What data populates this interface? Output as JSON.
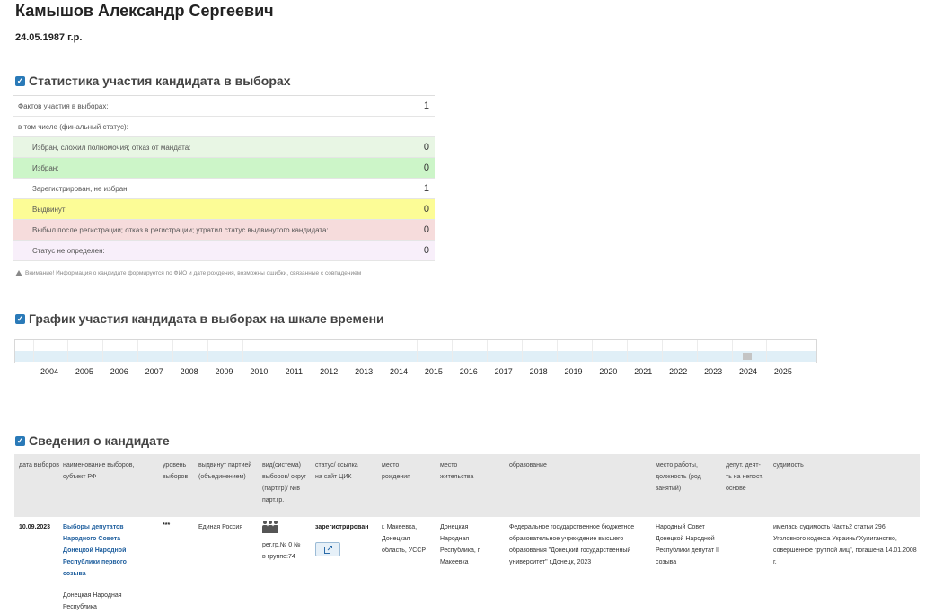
{
  "candidate": {
    "name": "Камышов Александр Сергеевич",
    "dob": "24.05.1987 г.р."
  },
  "stats": {
    "heading": "Статистика участия кандидата в выборах",
    "rows": [
      {
        "label": "Фактов участия в выборах:",
        "value": "1",
        "bg": "#ffffff"
      },
      {
        "label": "в том числе (финальный статус):",
        "value": "",
        "bg": "#ffffff"
      },
      {
        "label": "Избран, сложил полномочия; отказ от мандата:",
        "value": "0",
        "bg": "#e8f6e4"
      },
      {
        "label": "Избран:",
        "value": "0",
        "bg": "#ccf5c8"
      },
      {
        "label": "Зарегистрирован, не избран:",
        "value": "1",
        "bg": "#ffffff"
      },
      {
        "label": "Выдвинут:",
        "value": "0",
        "bg": "#fcfc96"
      },
      {
        "label": "Выбыл после регистрации; отказ в регистрации; утратил статус выдвинутого кандидата:",
        "value": "0",
        "bg": "#f6dcdc"
      },
      {
        "label": "Статус не определен:",
        "value": "0",
        "bg": "#f8effa"
      }
    ],
    "warning": "Внимание! Информация о кандидате формируется по ФИО и дате рождения, возможны ошибки, связанные с совпадением"
  },
  "timeline": {
    "heading": "График участия кандидата в выборах на шкале времени",
    "years": [
      "2004",
      "2005",
      "2006",
      "2007",
      "2008",
      "2009",
      "2010",
      "2011",
      "2012",
      "2013",
      "2014",
      "2015",
      "2016",
      "2017",
      "2018",
      "2019",
      "2020",
      "2021",
      "2022",
      "2023",
      "2024",
      "2025"
    ],
    "events": [
      {
        "date": "2023-09-10"
      }
    ]
  },
  "info": {
    "heading": "Сведения о кандидате",
    "headers": {
      "date": "дата выборов",
      "name": "наименование выборов, субъект РФ",
      "level": "уровень выборов",
      "party": "выдвинут партией (объединением)",
      "district": "вид(система) выборов/ округ (парт.гр)/ №в парт.гр.",
      "status": "статус/ ссылка на сайт ЦИК",
      "birthplace": "место рождения",
      "residence": "место жительства",
      "education": "образование",
      "work": "место работы, должность (род занятий)",
      "deputy": "депут. деят-ть на непост. основе",
      "conviction": "судимость"
    },
    "row": {
      "date": "10.09.2023",
      "name": "Выборы депутатов Народного Совета Донецкой Народной Республики первого созыва",
      "subject": "Донецкая Народная Республика",
      "level": "***",
      "party": "Единая Россия",
      "district": "рег.гр.№ 0 № в группе:74",
      "status": "зарегистрирован",
      "birthplace": "г. Макеевка, Донецкая область, УССР",
      "residence": "Донецкая Народная Республика, г. Макеевка",
      "education": "Федеральное государственное бюджетное образовательное учреждение высшего образования \"Донецкий государственный университет\" г.Донецк, 2023",
      "work": "Народный Совет Донецкой Народной Республики депутат II созыва",
      "deputy": "",
      "conviction": "имелась судимость Часть2 статьи 296 Уголовного кодекса Украины\"Хулиганство, совершенное группой лиц\", погашена 14.01.2008 г."
    }
  }
}
